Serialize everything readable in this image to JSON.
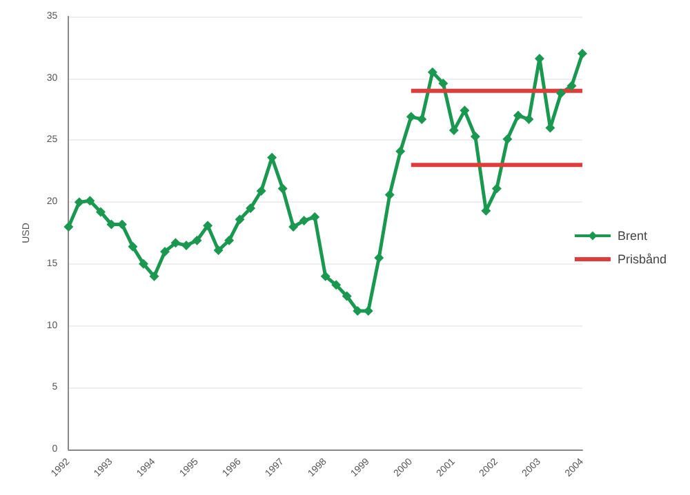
{
  "chart_data": {
    "type": "line",
    "ylabel": "USD",
    "xlim": [
      1992,
      2004
    ],
    "xticks": [
      1992,
      1993,
      1994,
      1995,
      1996,
      1997,
      1998,
      1999,
      2000,
      2001,
      2002,
      2003,
      2004
    ],
    "ylim": [
      0,
      35
    ],
    "yticks": [
      0,
      5,
      10,
      15,
      20,
      25,
      30,
      35
    ],
    "grid": "y",
    "legend": "right",
    "series": [
      {
        "name": "Brent",
        "color": "#1a9850",
        "marker": "diamond",
        "x": [
          1992,
          1992.25,
          1992.5,
          1992.75,
          1993,
          1993.25,
          1993.5,
          1993.75,
          1994,
          1994.25,
          1994.5,
          1994.75,
          1995,
          1995.25,
          1995.5,
          1995.75,
          1996,
          1996.25,
          1996.5,
          1996.75,
          1997,
          1997.25,
          1997.5,
          1997.75,
          1998,
          1998.25,
          1998.5,
          1998.75,
          1999,
          1999.25,
          1999.5,
          1999.75,
          2000,
          2000.25,
          2000.5,
          2000.75,
          2001,
          2001.25,
          2001.5,
          2001.75,
          2002,
          2002.25,
          2002.5,
          2002.75,
          2003,
          2003.25,
          2003.5,
          2003.75,
          2004
        ],
        "values": [
          18.0,
          20.0,
          20.1,
          19.2,
          18.2,
          18.2,
          16.4,
          15.0,
          14.0,
          16.0,
          16.7,
          16.5,
          16.9,
          18.1,
          16.1,
          16.9,
          18.6,
          19.5,
          20.9,
          23.6,
          21.1,
          18.0,
          18.5,
          18.8,
          14.0,
          13.3,
          12.4,
          11.2,
          11.2,
          15.5,
          20.6,
          24.1,
          26.9,
          26.7,
          30.5,
          29.6,
          25.8,
          27.4,
          25.3,
          19.3,
          21.1,
          25.1,
          27.0,
          26.7,
          31.6,
          26.0,
          28.8,
          29.4,
          32.0
        ]
      },
      {
        "name": "Prisbånd",
        "color": "#e03c3c",
        "marker": "none",
        "x": [
          2000,
          2004
        ],
        "values": [
          29,
          29
        ]
      },
      {
        "color": "#e03c3c",
        "marker": "none",
        "x": [
          2000,
          2004
        ],
        "values": [
          23,
          23
        ]
      }
    ]
  }
}
